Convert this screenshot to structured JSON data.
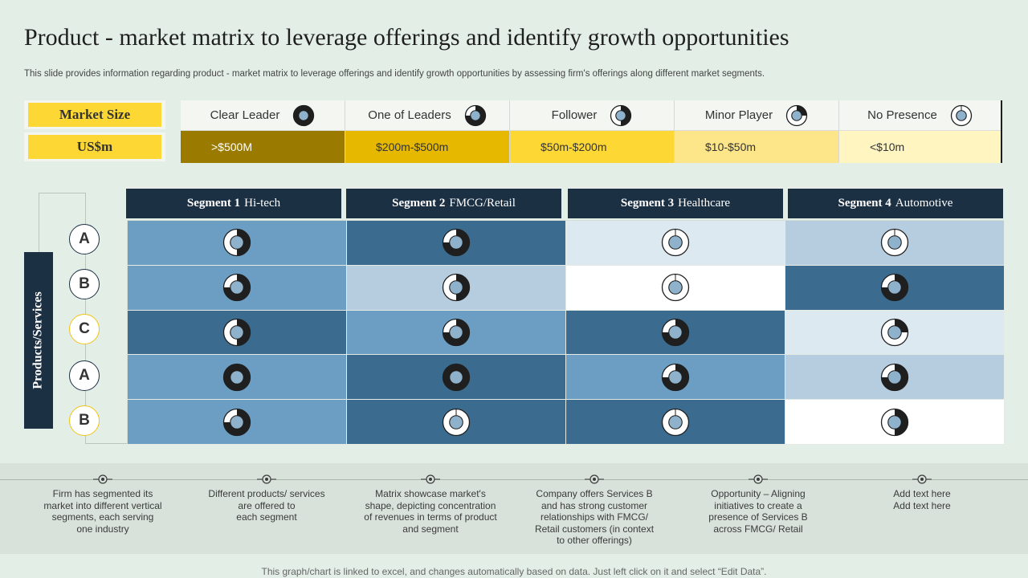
{
  "title": "Product - market matrix to leverage offerings and identify growth opportunities",
  "subtitle": "This slide provides information regarding product - market matrix to leverage offerings and identify growth opportunities by assessing firm's offerings along different market segments.",
  "market_size_label": "Market Size",
  "currency_label": "US$m",
  "legend": [
    {
      "name": "Clear Leader",
      "range": ">$500M",
      "quarters": 4,
      "color": "#9a7b00"
    },
    {
      "name": "One of Leaders",
      "range": "$200m-$500m",
      "quarters": 3,
      "color": "#e6b800"
    },
    {
      "name": "Follower",
      "range": "$50m-$200m",
      "quarters": 2,
      "color": "#fdd835"
    },
    {
      "name": "Minor Player",
      "range": "$10-$50m",
      "quarters": 1,
      "color": "#fde68a"
    },
    {
      "name": "No Presence",
      "range": "<$10m",
      "quarters": 0,
      "color": "#fef5c0"
    }
  ],
  "axis_label": "Products/Services",
  "segments": [
    {
      "num": "Segment 1",
      "name": "Hi-tech"
    },
    {
      "num": "Segment 2",
      "name": "FMCG/Retail"
    },
    {
      "num": "Segment 3",
      "name": "Healthcare"
    },
    {
      "num": "Segment 4",
      "name": "Automotive"
    }
  ],
  "rows": [
    {
      "label": "A",
      "style": "blue",
      "cells": [
        {
          "level": 2,
          "bg": "#6b9ec2"
        },
        {
          "level": 3,
          "bg": "#3b6b8e"
        },
        {
          "level": 0,
          "bg": "#dde9f0"
        },
        {
          "level": 0,
          "bg": "#b6cde0"
        }
      ]
    },
    {
      "label": "B",
      "style": "blue",
      "cells": [
        {
          "level": 3,
          "bg": "#6b9ec2"
        },
        {
          "level": 2,
          "bg": "#b6cde0"
        },
        {
          "level": 0,
          "bg": "#ffffff"
        },
        {
          "level": 3,
          "bg": "#3b6b8e"
        }
      ]
    },
    {
      "label": "C",
      "style": "yellow",
      "cells": [
        {
          "level": 2,
          "bg": "#3b6b8e"
        },
        {
          "level": 3,
          "bg": "#6b9ec2"
        },
        {
          "level": 3,
          "bg": "#3b6b8e"
        },
        {
          "level": 1,
          "bg": "#dde9f0"
        }
      ]
    },
    {
      "label": "A",
      "style": "blue",
      "cells": [
        {
          "level": 4,
          "bg": "#6b9ec2"
        },
        {
          "level": 4,
          "bg": "#3b6b8e"
        },
        {
          "level": 3,
          "bg": "#6b9ec2"
        },
        {
          "level": 3,
          "bg": "#b6cde0"
        }
      ]
    },
    {
      "label": "B",
      "style": "yellow",
      "cells": [
        {
          "level": 3,
          "bg": "#6b9ec2"
        },
        {
          "level": 0,
          "bg": "#3b6b8e"
        },
        {
          "level": 0,
          "bg": "#3b6b8e"
        },
        {
          "level": 2,
          "bg": "#ffffff"
        }
      ]
    }
  ],
  "notes": [
    "Firm has segmented its\nmarket into different vertical\nsegments, each serving\none industry",
    "Different products/ services\nare offered to\neach segment",
    "Matrix showcase market's\nshape, depicting concentration\nof revenues in terms of product\nand segment",
    "Company offers Services B\nand has strong customer\nrelationships with FMCG/\nRetail customers (in context\nto other offerings)",
    "Opportunity – Aligning\ninitiatives to create a\npresence of Services B\nacross FMCG/ Retail",
    "Add text here\nAdd text here"
  ],
  "footer": "This graph/chart is linked to excel,  and changes automatically based on data. Just left click on it and select “Edit Data”."
}
